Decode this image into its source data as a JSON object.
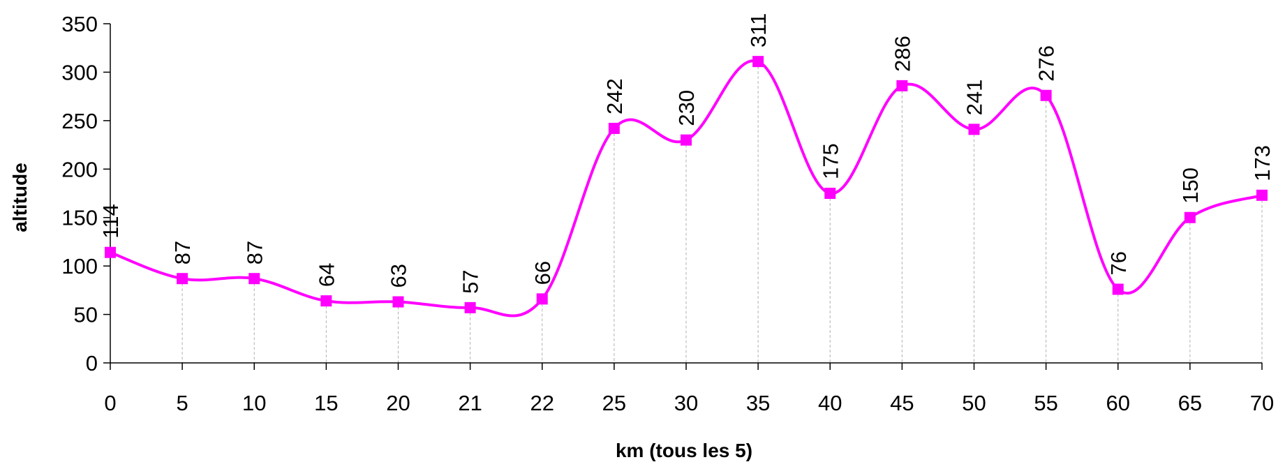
{
  "chart_data": {
    "type": "line",
    "categories": [
      "0",
      "5",
      "10",
      "15",
      "20",
      "21",
      "22",
      "25",
      "30",
      "35",
      "40",
      "45",
      "50",
      "55",
      "60",
      "65",
      "70"
    ],
    "values": [
      114,
      87,
      87,
      64,
      63,
      57,
      66,
      242,
      230,
      311,
      175,
      286,
      241,
      276,
      76,
      150,
      173
    ],
    "xlabel": "km  (tous les 5)",
    "ylabel": "altitude",
    "ylim": [
      0,
      350
    ],
    "yticks": [
      "0",
      "50",
      "100",
      "150",
      "200",
      "250",
      "300",
      "350"
    ],
    "grid": "vertical dashed drop lines at each category",
    "legend": "none",
    "line_color": "#ff00ff",
    "marker_color": "#ff00ff",
    "marker": "square",
    "data_labels": "rotated vertical, above markers"
  }
}
